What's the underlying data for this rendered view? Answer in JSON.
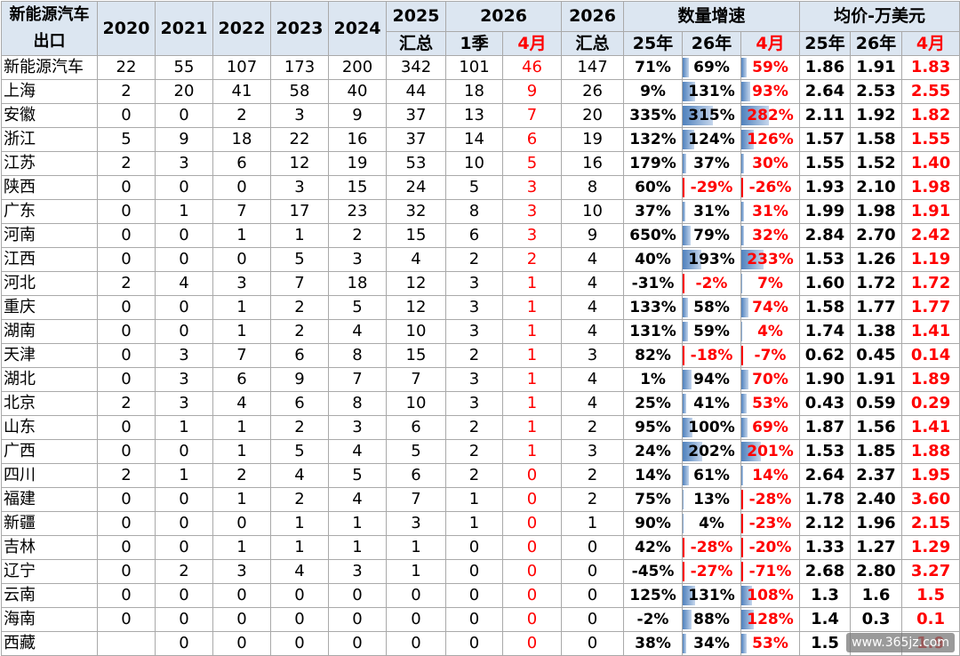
{
  "header": {
    "corner": "新能源汽车出口",
    "years": [
      "2020",
      "2021",
      "2022",
      "2023",
      "2024"
    ],
    "y2025": "2025",
    "y2025_sub": "汇总",
    "y2026": "2026",
    "q1": "1季",
    "apr": "4月",
    "sum2026": "2026",
    "sum2026_sub": "汇总",
    "growth_group": "数量增速",
    "growth_cols": [
      "25年",
      "26年",
      "4月"
    ],
    "price_group": "均价-万美元",
    "price_cols": [
      "25年",
      "26年",
      "4月"
    ]
  },
  "rows": [
    {
      "name": "新能源汽车",
      "y2020": "22",
      "y2021": "55",
      "y2022": "107",
      "y2023": "173",
      "y2024": "200",
      "y2025": "342",
      "q1": "101",
      "apr": "46",
      "sum2026": "147",
      "g25": "71%",
      "g26": "69%",
      "gapr": "59%",
      "p25": "1.86",
      "p26": "1.91",
      "papr": "1.83"
    },
    {
      "name": "上海",
      "y2020": "2",
      "y2021": "20",
      "y2022": "41",
      "y2023": "58",
      "y2024": "40",
      "y2025": "44",
      "q1": "18",
      "apr": "9",
      "sum2026": "26",
      "g25": "9%",
      "g26": "131%",
      "gapr": "93%",
      "p25": "2.64",
      "p26": "2.53",
      "papr": "2.55"
    },
    {
      "name": "安徽",
      "y2020": "0",
      "y2021": "0",
      "y2022": "2",
      "y2023": "3",
      "y2024": "9",
      "y2025": "37",
      "q1": "13",
      "apr": "7",
      "sum2026": "20",
      "g25": "335%",
      "g26": "315%",
      "gapr": "282%",
      "p25": "2.11",
      "p26": "1.92",
      "papr": "1.82"
    },
    {
      "name": "浙江",
      "y2020": "5",
      "y2021": "9",
      "y2022": "18",
      "y2023": "22",
      "y2024": "16",
      "y2025": "37",
      "q1": "14",
      "apr": "6",
      "sum2026": "19",
      "g25": "132%",
      "g26": "124%",
      "gapr": "126%",
      "p25": "1.57",
      "p26": "1.58",
      "papr": "1.55"
    },
    {
      "name": "江苏",
      "y2020": "2",
      "y2021": "3",
      "y2022": "6",
      "y2023": "12",
      "y2024": "19",
      "y2025": "53",
      "q1": "10",
      "apr": "5",
      "sum2026": "16",
      "g25": "179%",
      "g26": "37%",
      "gapr": "30%",
      "p25": "1.55",
      "p26": "1.52",
      "papr": "1.40"
    },
    {
      "name": "陕西",
      "y2020": "0",
      "y2021": "0",
      "y2022": "0",
      "y2023": "3",
      "y2024": "15",
      "y2025": "24",
      "q1": "5",
      "apr": "3",
      "sum2026": "8",
      "g25": "60%",
      "g26": "-29%",
      "gapr": "-26%",
      "p25": "1.93",
      "p26": "2.10",
      "papr": "1.98"
    },
    {
      "name": "广东",
      "y2020": "0",
      "y2021": "1",
      "y2022": "7",
      "y2023": "17",
      "y2024": "23",
      "y2025": "32",
      "q1": "8",
      "apr": "3",
      "sum2026": "10",
      "g25": "37%",
      "g26": "31%",
      "gapr": "31%",
      "p25": "1.99",
      "p26": "1.98",
      "papr": "1.91"
    },
    {
      "name": "河南",
      "y2020": "0",
      "y2021": "0",
      "y2022": "1",
      "y2023": "1",
      "y2024": "2",
      "y2025": "15",
      "q1": "6",
      "apr": "3",
      "sum2026": "9",
      "g25": "650%",
      "g26": "79%",
      "gapr": "32%",
      "p25": "2.84",
      "p26": "2.70",
      "papr": "2.42"
    },
    {
      "name": "江西",
      "y2020": "0",
      "y2021": "0",
      "y2022": "0",
      "y2023": "5",
      "y2024": "3",
      "y2025": "4",
      "q1": "2",
      "apr": "2",
      "sum2026": "4",
      "g25": "40%",
      "g26": "193%",
      "gapr": "233%",
      "p25": "1.53",
      "p26": "1.26",
      "papr": "1.19"
    },
    {
      "name": "河北",
      "y2020": "2",
      "y2021": "4",
      "y2022": "3",
      "y2023": "7",
      "y2024": "18",
      "y2025": "12",
      "q1": "3",
      "apr": "1",
      "sum2026": "4",
      "g25": "-31%",
      "g26": "-2%",
      "gapr": "7%",
      "p25": "1.60",
      "p26": "1.72",
      "papr": "1.72"
    },
    {
      "name": "重庆",
      "y2020": "0",
      "y2021": "0",
      "y2022": "1",
      "y2023": "2",
      "y2024": "5",
      "y2025": "12",
      "q1": "3",
      "apr": "1",
      "sum2026": "4",
      "g25": "133%",
      "g26": "58%",
      "gapr": "74%",
      "p25": "1.58",
      "p26": "1.77",
      "papr": "1.77"
    },
    {
      "name": "湖南",
      "y2020": "0",
      "y2021": "0",
      "y2022": "1",
      "y2023": "2",
      "y2024": "4",
      "y2025": "10",
      "q1": "3",
      "apr": "1",
      "sum2026": "4",
      "g25": "131%",
      "g26": "59%",
      "gapr": "4%",
      "p25": "1.74",
      "p26": "1.38",
      "papr": "1.41"
    },
    {
      "name": "天津",
      "y2020": "0",
      "y2021": "3",
      "y2022": "7",
      "y2023": "6",
      "y2024": "8",
      "y2025": "15",
      "q1": "2",
      "apr": "1",
      "sum2026": "3",
      "g25": "82%",
      "g26": "-18%",
      "gapr": "-7%",
      "p25": "0.62",
      "p26": "0.45",
      "papr": "0.14"
    },
    {
      "name": "湖北",
      "y2020": "0",
      "y2021": "3",
      "y2022": "6",
      "y2023": "9",
      "y2024": "7",
      "y2025": "7",
      "q1": "3",
      "apr": "1",
      "sum2026": "4",
      "g25": "1%",
      "g26": "94%",
      "gapr": "70%",
      "p25": "1.90",
      "p26": "1.91",
      "papr": "1.89"
    },
    {
      "name": "北京",
      "y2020": "2",
      "y2021": "3",
      "y2022": "4",
      "y2023": "6",
      "y2024": "8",
      "y2025": "10",
      "q1": "3",
      "apr": "1",
      "sum2026": "4",
      "g25": "25%",
      "g26": "41%",
      "gapr": "53%",
      "p25": "0.43",
      "p26": "0.59",
      "papr": "0.29"
    },
    {
      "name": "山东",
      "y2020": "0",
      "y2021": "1",
      "y2022": "1",
      "y2023": "2",
      "y2024": "3",
      "y2025": "6",
      "q1": "2",
      "apr": "1",
      "sum2026": "2",
      "g25": "95%",
      "g26": "100%",
      "gapr": "69%",
      "p25": "1.87",
      "p26": "1.56",
      "papr": "1.41"
    },
    {
      "name": "广西",
      "y2020": "0",
      "y2021": "0",
      "y2022": "1",
      "y2023": "5",
      "y2024": "4",
      "y2025": "5",
      "q1": "2",
      "apr": "1",
      "sum2026": "3",
      "g25": "24%",
      "g26": "202%",
      "gapr": "201%",
      "p25": "1.53",
      "p26": "1.85",
      "papr": "1.88"
    },
    {
      "name": "四川",
      "y2020": "2",
      "y2021": "1",
      "y2022": "2",
      "y2023": "4",
      "y2024": "5",
      "y2025": "6",
      "q1": "2",
      "apr": "0",
      "sum2026": "2",
      "g25": "14%",
      "g26": "61%",
      "gapr": "14%",
      "p25": "2.64",
      "p26": "2.37",
      "papr": "1.95"
    },
    {
      "name": "福建",
      "y2020": "0",
      "y2021": "0",
      "y2022": "1",
      "y2023": "2",
      "y2024": "4",
      "y2025": "7",
      "q1": "1",
      "apr": "0",
      "sum2026": "2",
      "g25": "75%",
      "g26": "13%",
      "gapr": "-28%",
      "p25": "1.78",
      "p26": "2.40",
      "papr": "3.60"
    },
    {
      "name": "新疆",
      "y2020": "0",
      "y2021": "0",
      "y2022": "0",
      "y2023": "1",
      "y2024": "1",
      "y2025": "3",
      "q1": "1",
      "apr": "0",
      "sum2026": "1",
      "g25": "90%",
      "g26": "4%",
      "gapr": "-23%",
      "p25": "2.12",
      "p26": "1.96",
      "papr": "2.15"
    },
    {
      "name": "吉林",
      "y2020": "0",
      "y2021": "0",
      "y2022": "1",
      "y2023": "1",
      "y2024": "1",
      "y2025": "1",
      "q1": "0",
      "apr": "0",
      "sum2026": "0",
      "g25": "42%",
      "g26": "-28%",
      "gapr": "-20%",
      "p25": "1.33",
      "p26": "1.27",
      "papr": "1.29"
    },
    {
      "name": "辽宁",
      "y2020": "0",
      "y2021": "2",
      "y2022": "3",
      "y2023": "4",
      "y2024": "3",
      "y2025": "1",
      "q1": "0",
      "apr": "0",
      "sum2026": "0",
      "g25": "-45%",
      "g26": "-27%",
      "gapr": "-71%",
      "p25": "2.68",
      "p26": "2.80",
      "papr": "3.27"
    },
    {
      "name": "云南",
      "y2020": "0",
      "y2021": "0",
      "y2022": "0",
      "y2023": "0",
      "y2024": "0",
      "y2025": "0",
      "q1": "0",
      "apr": "0",
      "sum2026": "0",
      "g25": "125%",
      "g26": "131%",
      "gapr": "108%",
      "p25": "1.3",
      "p26": "1.6",
      "papr": "1.5"
    },
    {
      "name": "海南",
      "y2020": "0",
      "y2021": "0",
      "y2022": "0",
      "y2023": "0",
      "y2024": "0",
      "y2025": "0",
      "q1": "0",
      "apr": "0",
      "sum2026": "0",
      "g25": "-2%",
      "g26": "88%",
      "gapr": "128%",
      "p25": "1.4",
      "p26": "0.3",
      "papr": "0.1"
    },
    {
      "name": "西藏",
      "y2020": "",
      "y2021": "0",
      "y2022": "0",
      "y2023": "0",
      "y2024": "0",
      "y2025": "0",
      "q1": "0",
      "apr": "0",
      "sum2026": "0",
      "g25": "38%",
      "g26": "34%",
      "gapr": "53%",
      "p25": "1.5",
      "p26": "",
      "papr": "1.9"
    }
  ],
  "watermark": "www.365jz.com",
  "colors": {
    "header_bg": "#dce6f1",
    "accent_red": "#ff0000",
    "bar_blue": "#4f81bd",
    "border": "#a9a9a9"
  }
}
